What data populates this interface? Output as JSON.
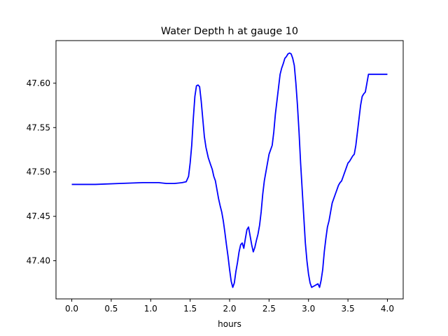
{
  "chart_data": {
    "type": "line",
    "title": "Water Depth h at gauge 10",
    "xlabel": "hours",
    "ylabel": "",
    "xlim": [
      -0.2,
      4.2
    ],
    "ylim": [
      47.357,
      47.648
    ],
    "xticks": [
      0.0,
      0.5,
      1.0,
      1.5,
      2.0,
      2.5,
      3.0,
      3.5,
      4.0
    ],
    "xtick_labels": [
      "0.0",
      "0.5",
      "1.0",
      "1.5",
      "2.0",
      "2.5",
      "3.0",
      "3.5",
      "4.0"
    ],
    "yticks": [
      47.4,
      47.45,
      47.5,
      47.55,
      47.6
    ],
    "ytick_labels": [
      "47.40",
      "47.45",
      "47.50",
      "47.55",
      "47.60"
    ],
    "grid": false,
    "series": [
      {
        "color": "#0000ff",
        "x": [
          0.0,
          0.3,
          0.6,
          0.9,
          1.1,
          1.2,
          1.3,
          1.4,
          1.45,
          1.48,
          1.5,
          1.52,
          1.54,
          1.56,
          1.58,
          1.6,
          1.62,
          1.64,
          1.66,
          1.68,
          1.7,
          1.73,
          1.76,
          1.78,
          1.8,
          1.82,
          1.84,
          1.86,
          1.88,
          1.9,
          1.92,
          1.94,
          1.96,
          1.98,
          2.0,
          2.02,
          2.04,
          2.06,
          2.08,
          2.1,
          2.12,
          2.14,
          2.16,
          2.18,
          2.2,
          2.22,
          2.24,
          2.26,
          2.28,
          2.3,
          2.32,
          2.34,
          2.36,
          2.38,
          2.4,
          2.42,
          2.44,
          2.46,
          2.48,
          2.5,
          2.52,
          2.54,
          2.56,
          2.58,
          2.6,
          2.62,
          2.64,
          2.66,
          2.68,
          2.7,
          2.72,
          2.74,
          2.76,
          2.78,
          2.8,
          2.82,
          2.84,
          2.86,
          2.88,
          2.9,
          2.92,
          2.94,
          2.96,
          2.98,
          3.0,
          3.02,
          3.04,
          3.06,
          3.08,
          3.1,
          3.12,
          3.14,
          3.16,
          3.18,
          3.2,
          3.22,
          3.24,
          3.26,
          3.28,
          3.3,
          3.32,
          3.34,
          3.36,
          3.38,
          3.4,
          3.42,
          3.44,
          3.46,
          3.48,
          3.5,
          3.52,
          3.54,
          3.56,
          3.58,
          3.6,
          3.62,
          3.64,
          3.66,
          3.68,
          3.7,
          3.72,
          3.74,
          3.76,
          3.78,
          3.8,
          3.82,
          3.84,
          3.86,
          3.88,
          3.9,
          3.92,
          3.94,
          3.96,
          3.98,
          4.0
        ],
        "y": [
          47.486,
          47.486,
          47.487,
          47.488,
          47.488,
          47.487,
          47.487,
          47.488,
          47.489,
          47.495,
          47.51,
          47.53,
          47.56,
          47.585,
          47.597,
          47.598,
          47.596,
          47.58,
          47.56,
          47.54,
          47.528,
          47.516,
          47.508,
          47.503,
          47.495,
          47.49,
          47.48,
          47.47,
          47.462,
          47.455,
          47.445,
          47.432,
          47.418,
          47.405,
          47.39,
          47.377,
          47.37,
          47.375,
          47.388,
          47.398,
          47.41,
          47.418,
          47.42,
          47.414,
          47.425,
          47.435,
          47.438,
          47.428,
          47.418,
          47.41,
          47.415,
          47.423,
          47.43,
          47.44,
          47.455,
          47.475,
          47.49,
          47.5,
          47.51,
          47.52,
          47.525,
          47.53,
          47.545,
          47.565,
          47.58,
          47.595,
          47.61,
          47.617,
          47.622,
          47.628,
          47.63,
          47.633,
          47.634,
          47.633,
          47.628,
          47.62,
          47.6,
          47.575,
          47.545,
          47.51,
          47.48,
          47.45,
          47.42,
          47.4,
          47.385,
          47.375,
          47.37,
          47.371,
          47.372,
          47.373,
          47.374,
          47.37,
          47.378,
          47.39,
          47.41,
          47.425,
          47.438,
          47.445,
          47.455,
          47.465,
          47.47,
          47.475,
          47.48,
          47.485,
          47.488,
          47.49,
          47.495,
          47.5,
          47.505,
          47.51,
          47.512,
          47.515,
          47.518,
          47.52,
          47.53,
          47.545,
          47.56,
          47.575,
          47.585,
          47.588,
          47.59,
          47.6,
          47.61,
          47.61,
          47.61,
          47.61,
          47.61,
          47.61,
          47.61,
          47.61,
          47.61,
          47.61,
          47.61,
          47.61,
          47.61
        ]
      }
    ]
  }
}
